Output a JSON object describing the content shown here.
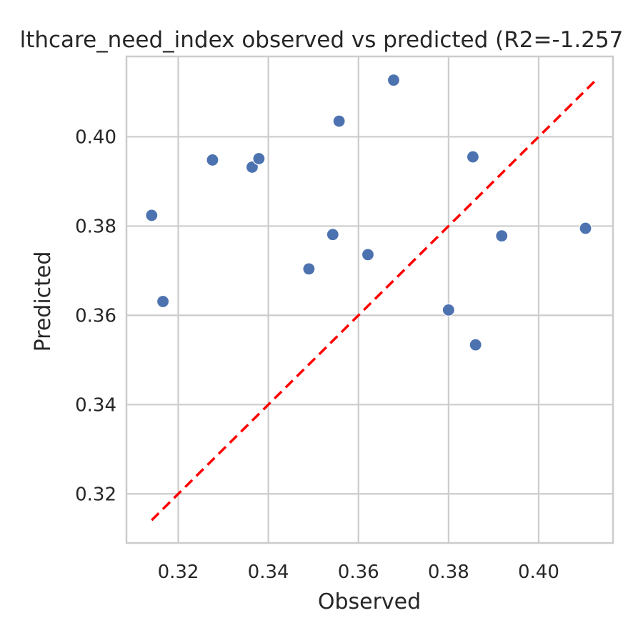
{
  "chart_data": {
    "type": "scatter",
    "title": "lthcare_need_index observed vs predicted (R2=-1.257",
    "xlabel": "Observed",
    "ylabel": "Predicted",
    "xlim": [
      0.3085,
      0.4165
    ],
    "ylim": [
      0.309,
      0.418
    ],
    "xticks": [
      0.32,
      0.34,
      0.36,
      0.38,
      0.4
    ],
    "yticks": [
      0.32,
      0.34,
      0.36,
      0.38,
      0.4
    ],
    "xtick_labels": [
      "0.32",
      "0.34",
      "0.36",
      "0.38",
      "0.40"
    ],
    "ytick_labels": [
      "0.32",
      "0.34",
      "0.36",
      "0.38",
      "0.40"
    ],
    "grid": true,
    "point_color": "#4c72b0",
    "reference_line": {
      "from": [
        0.3141,
        0.3141
      ],
      "to": [
        0.4128,
        0.4128
      ],
      "color": "#ff0000",
      "style": "dashed"
    },
    "points": [
      {
        "x": 0.3141,
        "y": 0.3824
      },
      {
        "x": 0.3166,
        "y": 0.3631
      },
      {
        "x": 0.3276,
        "y": 0.3948
      },
      {
        "x": 0.3364,
        "y": 0.3932
      },
      {
        "x": 0.3379,
        "y": 0.3951
      },
      {
        "x": 0.349,
        "y": 0.3704
      },
      {
        "x": 0.3543,
        "y": 0.3781
      },
      {
        "x": 0.3557,
        "y": 0.4035
      },
      {
        "x": 0.3621,
        "y": 0.3736
      },
      {
        "x": 0.3678,
        "y": 0.4127
      },
      {
        "x": 0.38,
        "y": 0.3612
      },
      {
        "x": 0.3854,
        "y": 0.3955
      },
      {
        "x": 0.386,
        "y": 0.3534
      },
      {
        "x": 0.3918,
        "y": 0.3778
      },
      {
        "x": 0.4104,
        "y": 0.3795
      }
    ]
  }
}
